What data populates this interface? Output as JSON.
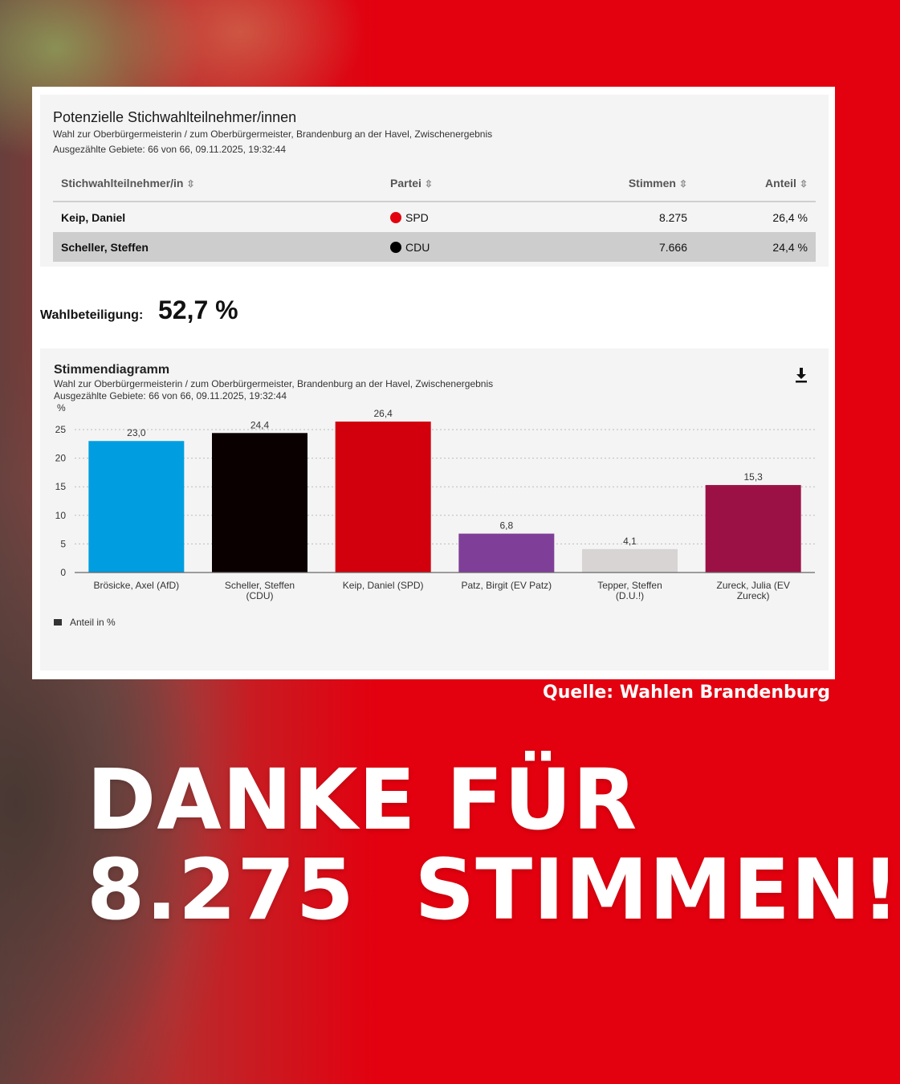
{
  "results_table": {
    "title": "Potenzielle Stichwahlteilnehmer/innen",
    "subtitle": "Wahl zur Oberbürgermeisterin / zum Oberbürgermeister, Brandenburg an der Havel, Zwischenergebnis",
    "counted": "Ausgezählte Gebiete: 66 von 66, 09.11.2025, 19:32:44",
    "columns": [
      "Stichwahlteilnehmer/in",
      "Partei",
      "Stimmen",
      "Anteil"
    ],
    "rows": [
      {
        "name": "Keip, Daniel",
        "party": "SPD",
        "party_color": "#e3000f",
        "votes": "8.275",
        "share": "26,4 %"
      },
      {
        "name": "Scheller, Steffen",
        "party": "CDU",
        "party_color": "#000000",
        "votes": "7.666",
        "share": "24,4 %"
      }
    ]
  },
  "turnout": {
    "label": "Wahlbeteiligung:",
    "value": "52,7 %"
  },
  "chart_card": {
    "title": "Stimmendiagramm",
    "subtitle": "Wahl zur Oberbürgermeisterin / zum Oberbürgermeister, Brandenburg an der Havel, Zwischenergebnis",
    "counted": "Ausgezählte Gebiete: 66 von 66, 09.11.2025, 19:32:44",
    "download_icon": "download-icon",
    "legend": "Anteil in %"
  },
  "chart_data": {
    "type": "bar",
    "categories": [
      [
        "Brösicke, Axel (AfD)"
      ],
      [
        "Scheller, Steffen",
        "(CDU)"
      ],
      [
        "Keip, Daniel (SPD)"
      ],
      [
        "Patz, Birgit (EV Patz)"
      ],
      [
        "Tepper, Steffen",
        "(D.U.!)"
      ],
      [
        "Zureck, Julia (EV",
        "Zureck)"
      ]
    ],
    "values": [
      23.0,
      24.4,
      26.4,
      6.8,
      4.1,
      15.3
    ],
    "value_labels": [
      "23,0",
      "24,4",
      "26,4",
      "6,8",
      "4,1",
      "15,3"
    ],
    "colors": [
      "#009ee0",
      "#0b0000",
      "#d2000c",
      "#7f3f98",
      "#d8d4d4",
      "#9c1145"
    ],
    "y_unit": "%",
    "yticks": [
      0,
      5,
      10,
      15,
      20,
      25
    ],
    "ylim": [
      0,
      28
    ],
    "grid": true,
    "series": [
      {
        "name": "Anteil in %",
        "values": [
          23.0,
          24.4,
          26.4,
          6.8,
          4.1,
          15.3
        ]
      }
    ],
    "legend_position": "bottom-left"
  },
  "source": "Quelle: Wahlen Brandenburg",
  "headline": {
    "line1": "DANKE FÜR",
    "line2": "8.275  STIMMEN!"
  }
}
